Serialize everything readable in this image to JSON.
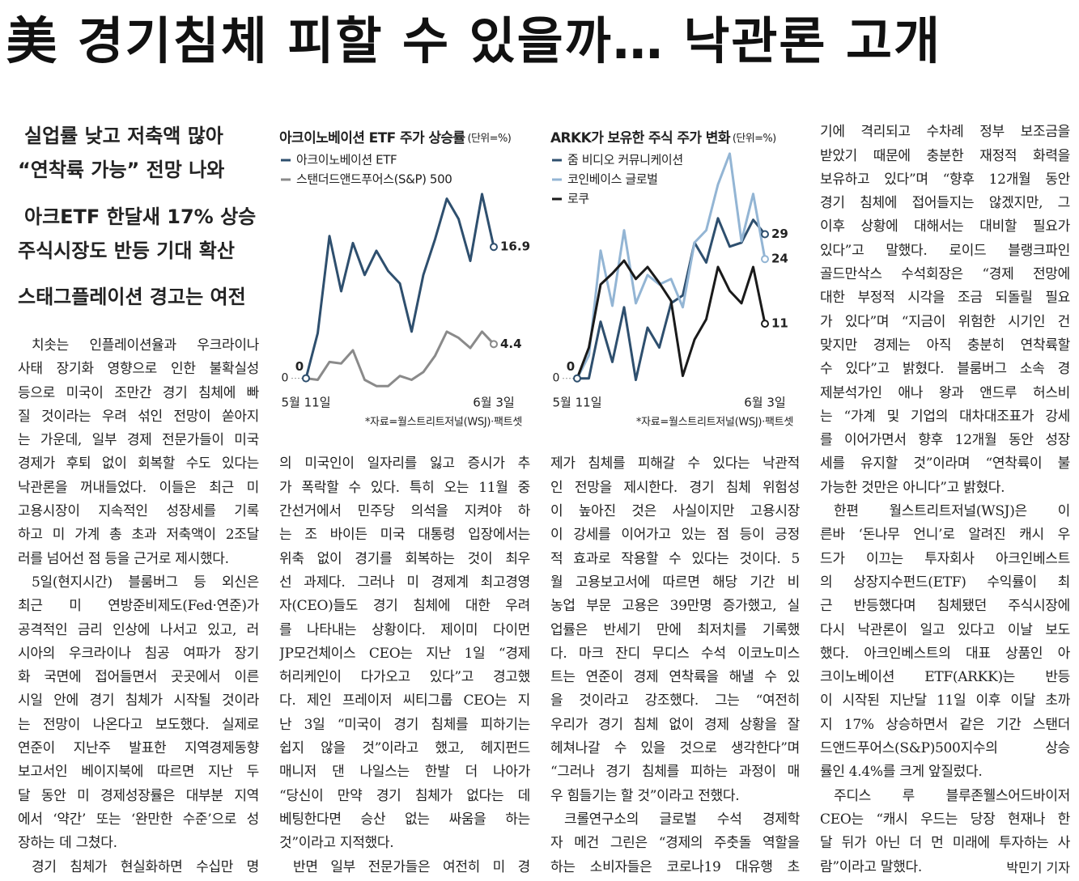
{
  "headline": "美 경기침체 피할 수 있을까… 낙관론 고개",
  "subheads": [
    "실업률 낮고 저축액 많아",
    "“연착륙 가능” 전망 나와",
    "아크ETF 한달새 17% 상승",
    "주식시장도 반등 기대 확산",
    "스태그플레이션 경고는 여전"
  ],
  "charts": [
    {
      "type": "line",
      "title": "아크이노베이션 ETF 주가 상승률",
      "unit": "(단위=%)",
      "categories": [
        "5월 11일",
        null,
        null,
        null,
        null,
        null,
        null,
        null,
        null,
        null,
        null,
        null,
        null,
        null,
        null,
        null,
        "6월 3일"
      ],
      "series": [
        {
          "name": "아크이노베이션 ETF",
          "color": "#2e4f6e",
          "values": [
            0,
            5.8,
            18.3,
            11.2,
            17.4,
            13.3,
            16.4,
            13.8,
            12.2,
            6.0,
            13.3,
            17.9,
            23.1,
            20.5,
            15.1,
            23.7,
            16.9
          ]
        },
        {
          "name": "스탠더드앤드푸어스(S&P) 500",
          "color": "#8a8a8a",
          "values": [
            0,
            -0.2,
            2.1,
            1.9,
            3.6,
            -0.2,
            -1.0,
            -1.0,
            0.3,
            -0.2,
            0.8,
            2.9,
            6.0,
            5.2,
            3.9,
            6.0,
            4.4
          ]
        }
      ],
      "ylim": [
        -1.5,
        24
      ],
      "yticks": [
        0
      ],
      "source": "*자료=월스트리트저널(WSJ)·팩트셋"
    },
    {
      "type": "line",
      "title": "ARKK가 보유한 주식 주가 변화",
      "unit": "(단위=%)",
      "categories": [
        "5월 11일",
        null,
        null,
        null,
        null,
        null,
        null,
        null,
        null,
        null,
        null,
        null,
        null,
        null,
        null,
        null,
        "6월 3일"
      ],
      "series": [
        {
          "name": "줌 비디오 커뮤니케이션",
          "color": "#2e4f6e",
          "values": [
            0,
            0,
            11.4,
            3.3,
            14.3,
            -0.3,
            10.2,
            6.2,
            15.1,
            16.7,
            27.3,
            23.3,
            32.2,
            26.5,
            27.3,
            31.9,
            29
          ]
        },
        {
          "name": "코인베이스 글로벌",
          "color": "#93b5d4",
          "values": [
            0,
            4.6,
            25.7,
            14.6,
            29.8,
            15.1,
            20.8,
            18.9,
            20.0,
            14.3,
            27.3,
            29.8,
            39.0,
            45.2,
            27.6,
            37.1,
            24
          ]
        },
        {
          "name": "로쿠",
          "color": "#1a1a1a",
          "values": [
            0,
            6.2,
            18.9,
            21.1,
            23.7,
            20.0,
            22.4,
            19.2,
            15.6,
            0.5,
            7.8,
            11.9,
            22.4,
            17.6,
            15.1,
            22.4,
            11
          ]
        }
      ],
      "ylim": [
        -2,
        46
      ],
      "yticks": [
        0
      ],
      "source": "*자료=월스트리트저널(WSJ)·팩트셋"
    }
  ],
  "body": {
    "columns": [
      [
        [
          "치솟는 인플레이션율과 우크라이나",
          "사태 장기화 영향으로 인한 불확실성",
          "등으로 미국이 조만간 경기 침체에 빠",
          "질 것이라는 우려 섞인 전망이 쏟아지",
          "는 가운데, 일부 경제 전문가들이 미국",
          "경제가 후퇴 없이 회복할 수도 있다는",
          "낙관론을 꺼내들었다. 이들은 최근 미",
          "고용시장이 지속적인 성장세를 기록",
          "하고 미 가계 총 초과 저축액이 2조달",
          "러를 넘어선 점 등을 근거로 제시했다."
        ],
        [
          "5일(현지시간) 블룸버그 등 외신은",
          "최근 미 연방준비제도(Fed·연준)가",
          "공격적인 금리 인상에 나서고 있고, 러",
          "시아의 우크라이나 침공 여파가 장기",
          "화 국면에 접어들면서 곳곳에서 이른",
          "시일 안에 경기 침체가 시작될 것이라",
          "는 전망이 나온다고 보도했다. 실제로",
          "연준이 지난주 발표한 지역경제동향",
          "보고서인 베이지북에 따르면 지난 두",
          "달 동안 미 경제성장률은 대부분 지역",
          "에서 ‘약간’ 또는 ‘완만한 수준’으로 성",
          "장하는 데 그쳤다."
        ],
        [
          "경기 침체가 현실화하면 수십만 명"
        ]
      ],
      [
        [
          "의 미국인이 일자리를 잃고 증시가 추",
          "가 폭락할 수 있다. 특히 오는 11월 중",
          "간선거에서 민주당 의석을 지켜야 하",
          "는 조 바이든 미국 대통령 입장에서는",
          "위축 없이 경기를 회복하는 것이 최우",
          "선 과제다. 그러나 미 경제계 최고경영",
          "자(CEO)들도 경기 침체에 대한 우려",
          "를 나타내는 상황이다. 제이미 다이먼",
          "JP모건체이스 CEO는 지난 1일 “경제",
          "허리케인이 다가오고 있다”고 경고했",
          "다. 제인 프레이저 씨티그룹 CEO는 지",
          "난 3일 “미국이 경기 침체를 피하기는",
          "쉽지 않을 것”이라고 했고, 헤지펀드",
          "매니저 댄 나일스는 한발 더 나아가",
          "“당신이 만약 경기 침체가 없다는 데",
          "베팅한다면 승산 없는 싸움을 하는",
          "것”이라고 지적했다."
        ],
        [
          "반면 일부 전문가들은 여전히 미 경"
        ]
      ],
      [
        [
          "제가 침체를 피해갈 수 있다는 낙관적",
          "인 전망을 제시한다. 경기 침체 위험성",
          "이 높아진 것은 사실이지만 고용시장",
          "이 강세를 이어가고 있는 점 등이 긍정",
          "적 효과로 작용할 수 있다는 것이다. 5",
          "월 고용보고서에 따르면 해당 기간 비",
          "농업 부문 고용은 39만명 증가했고, 실",
          "업률은 반세기 만에 최저치를 기록했",
          "다. 마크 잔디 무디스 수석 이코노미스",
          "트는 연준이 경제 연착륙을 해낼 수 있",
          "을 것이라고 강조했다. 그는 “여전히",
          "우리가 경기 침체 없이 경제 상황을 잘",
          "헤쳐나갈 수 있을 것으로 생각한다”며",
          "“그러나 경기 침체를 피하는 과정이 매",
          "우 힘들기는 할 것”이라고 전했다."
        ],
        [
          "크롤연구소의 글로벌 수석 경제학",
          "자 메건 그린은 “경제의 주춧돌 역할을",
          "하는 소비자들은 코로나19 대유행 초"
        ]
      ],
      [
        [
          "기에 격리되고 수차례 정부 보조금을",
          "받았기 때문에 충분한 재정적 화력을",
          "보유하고 있다”며 “향후 12개월 동안",
          "경기 침체에 접어들지는 않겠지만, 그",
          "이후 상황에 대해서는 대비할 필요가",
          "있다”고 말했다. 로이드 블랭크파인",
          "골드만삭스 수석회장은 “경제 전망에",
          "대한 부정적 시각을 조금 되돌릴 필요",
          "가 있다”며 “지금이 위험한 시기인 건",
          "맞지만 경제는 아직 충분히 연착륙할",
          "수 있다”고 밝혔다. 블룸버그 소속 경",
          "제분석가인 애나 왕과 앤드루 허스비",
          "는 “가계 및 기업의 대차대조표가 강세",
          "를 이어가면서 향후 12개월 동안 성장",
          "세를 유지할 것”이라며 “연착륙이 불",
          "가능한 것만은 아니다”고 밝혔다."
        ],
        [
          "한편 월스트리트저널(WSJ)은 이",
          "른바 ‘돈나무 언니’로 알려진 캐시 우",
          "드가 이끄는 투자회사 아크인베스트",
          "의 상장지수펀드(ETF) 수익률이 최",
          "근 반등했다며 침체됐던 주식시장에",
          "다시 낙관론이 일고 있다고 이날 보도",
          "했다. 아크인베스트의 대표 상품인 아",
          "크이노베이션 ETF(ARKK)는 반등",
          "이 시작된 지난달 11일 이후 이달 초까",
          "지 17% 상승하면서 같은 기간 스탠더",
          "드앤드푸어스(S&P)500지수의 상승",
          "률인 4.4%를 크게 앞질렀다."
        ],
        [
          "주디스 루 블루존웰스어드바이저",
          "CEO는 “캐시 우드는 당장 현재나 한",
          "달 뒤가 아닌 더 먼 미래에 투자하는 사",
          "람”이라고 말했다."
        ]
      ]
    ]
  },
  "byline": "박민기 기자"
}
